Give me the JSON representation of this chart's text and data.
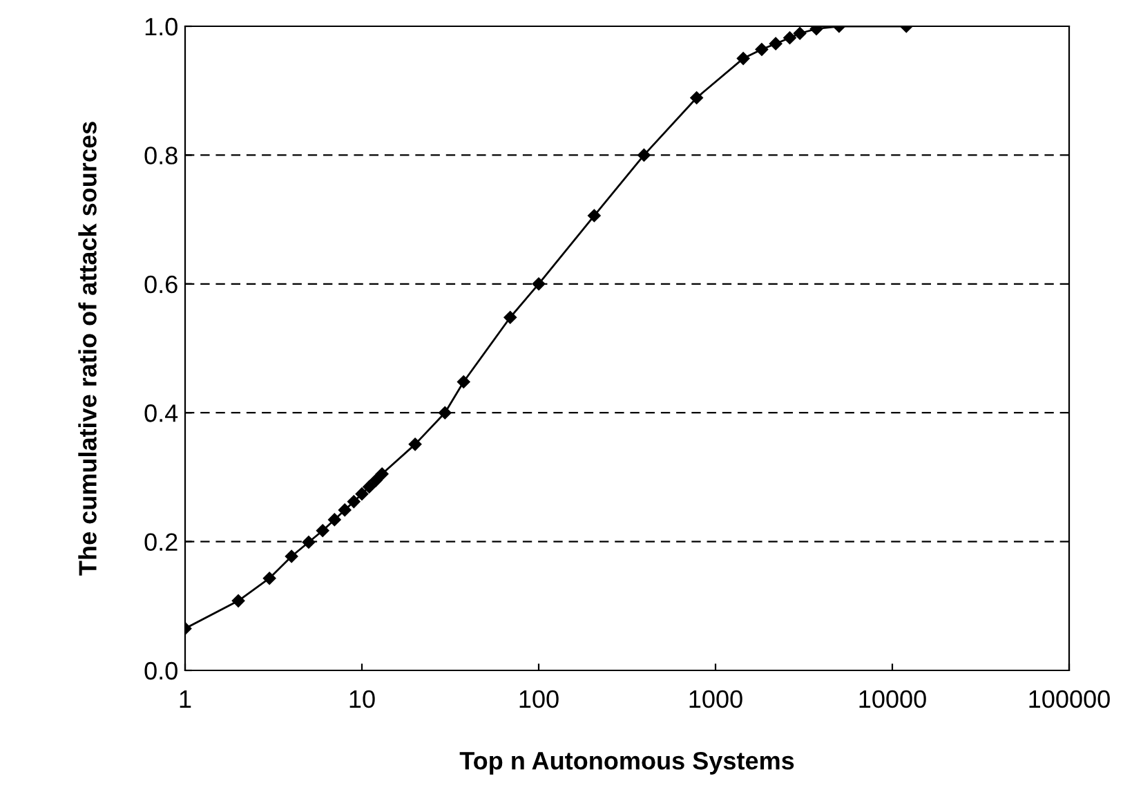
{
  "chart_data": {
    "type": "line",
    "xlabel": "Top n Autonomous Systems",
    "ylabel": "The cumulative ratio of attack sources",
    "log": "x",
    "grid": "y",
    "marker": "diamond",
    "line_style": "solid",
    "series": [
      {
        "color": "#000000",
        "x": [
          1,
          2,
          3,
          4,
          5,
          6,
          7,
          8,
          9,
          10,
          11,
          12,
          13,
          20,
          29.5,
          37.6,
          69,
          100,
          206,
          394,
          782,
          1435,
          1825,
          2190,
          2630,
          3000,
          3720,
          5000,
          12000
        ],
        "values": [
          0.065,
          0.108,
          0.143,
          0.177,
          0.199,
          0.217,
          0.234,
          0.249,
          0.262,
          0.274,
          0.285,
          0.295,
          0.305,
          0.351,
          0.4,
          0.448,
          0.548,
          0.6,
          0.706,
          0.8,
          0.889,
          0.95,
          0.964,
          0.973,
          0.982,
          0.989,
          0.996,
          1.0,
          1.0
        ]
      }
    ],
    "xlim": [
      1,
      100000
    ],
    "xticks": [
      1,
      10,
      100,
      1000,
      10000,
      100000
    ],
    "ylim": [
      0,
      1
    ],
    "yticks": [
      {
        "value": 0,
        "label": "0.0"
      },
      {
        "value": 0.2,
        "label": "0.2"
      },
      {
        "value": 0.4,
        "label": "0.4"
      },
      {
        "value": 0.6,
        "label": "0.6"
      },
      {
        "value": 0.8,
        "label": "0.8"
      },
      {
        "value": 1,
        "label": "1.0"
      }
    ]
  }
}
